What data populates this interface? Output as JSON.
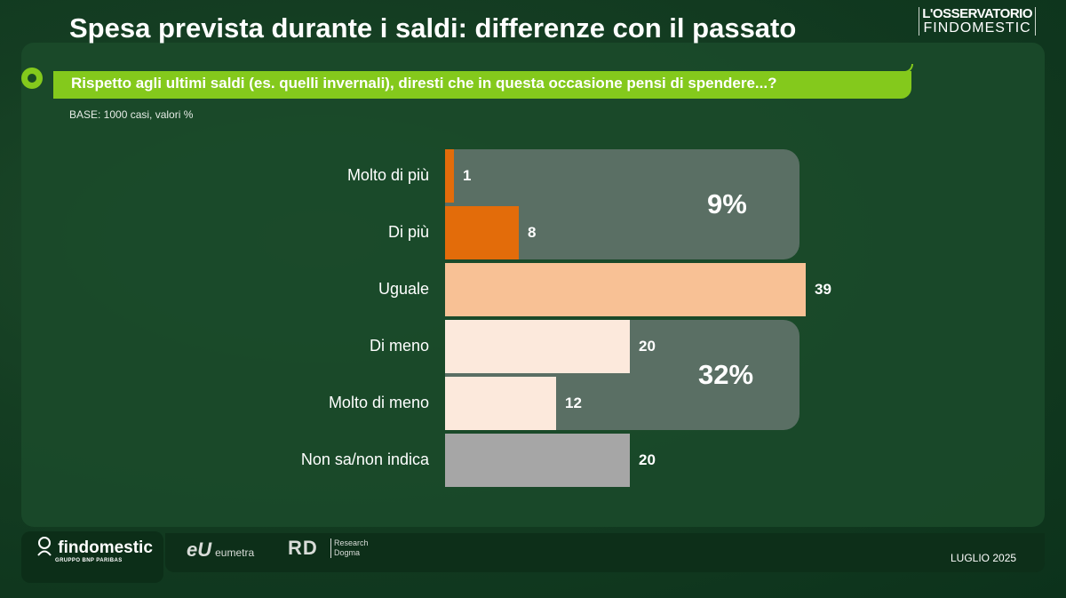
{
  "header": {
    "title": "Spesa prevista durante i saldi: differenze con il passato",
    "brand_line1": "L'OSSERVATORIO",
    "brand_line2": "FINDOMESTIC"
  },
  "question": {
    "text": "Rispetto agli ultimi saldi (es. quelli invernali), diresti che in questa occasione pensi di spendere...?",
    "base": "BASE: 1000 casi, valori %"
  },
  "chart_data": {
    "type": "bar",
    "orientation": "horizontal",
    "categories": [
      "Molto di più",
      "Di più",
      "Uguale",
      "Di meno",
      "Molto di meno",
      "Non sa/non indica"
    ],
    "values": [
      1,
      8,
      39,
      20,
      12,
      20
    ],
    "value_labels": [
      "1",
      "8",
      "39",
      "20",
      "12",
      "20"
    ],
    "colors": [
      "#e36c0a",
      "#e36c0a",
      "#f8c195",
      "#fce9dc",
      "#fce9dc",
      "#a6a6a6"
    ],
    "groups": [
      {
        "label": "9%",
        "categories": [
          "Molto di più",
          "Di più"
        ],
        "color": "#5a6f64"
      },
      {
        "label": "32%",
        "categories": [
          "Di meno",
          "Molto di meno"
        ],
        "color": "#5a6f64"
      }
    ],
    "xlim": [
      0,
      39
    ]
  },
  "footer": {
    "findomestic": "findomestic",
    "findomestic_sub": "GRUPPO BNP PARIBAS",
    "eumetra_mark": "eU",
    "eumetra": "eumetra",
    "rd_mark": "RD",
    "rd_line1": "Research",
    "rd_line2": "Dogma",
    "date": "LUGLIO 2025"
  },
  "colors": {
    "background": "#0f3a20",
    "accent": "#84c91c",
    "text": "#ffffff"
  }
}
